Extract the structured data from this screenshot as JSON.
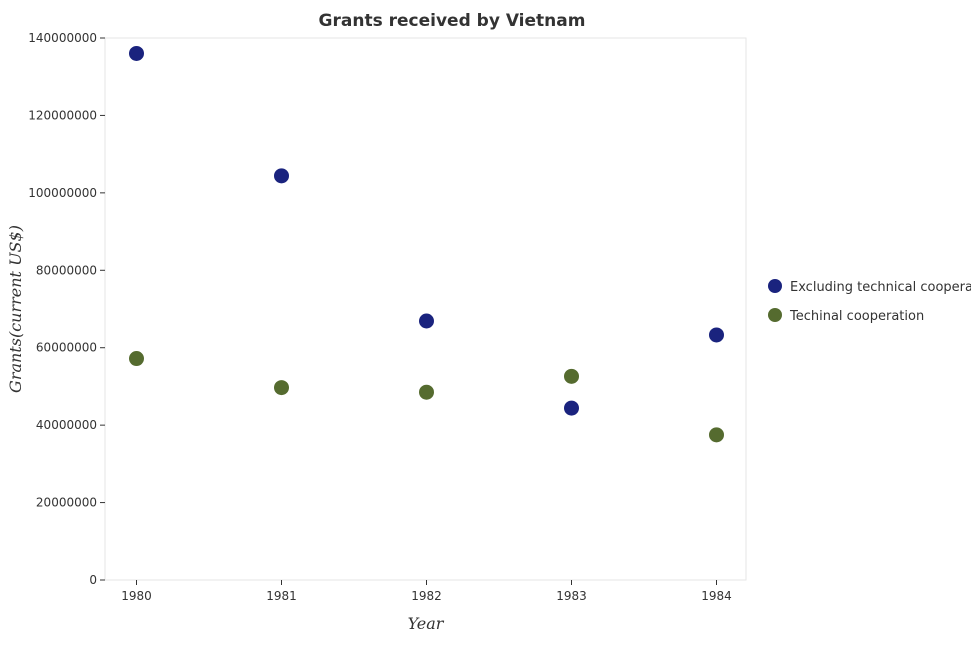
{
  "chart_data": {
    "type": "scatter",
    "title": "Grants received by Vietnam",
    "xlabel": "Year",
    "ylabel": "Grants(current US$)",
    "categories": [
      "1980",
      "1981",
      "1982",
      "1983",
      "1984"
    ],
    "yticks": [
      0,
      20000000,
      40000000,
      60000000,
      80000000,
      100000000,
      120000000,
      140000000
    ],
    "ytick_labels": [
      "0",
      "20000000",
      "40000000",
      "60000000",
      "80000000",
      "100000000",
      "120000000",
      "140000000"
    ],
    "ylim": [
      0,
      140000000
    ],
    "grid": false,
    "legend_position": "right",
    "series": [
      {
        "name": "Excluding technical cooperation",
        "color": "#1a237e",
        "values": [
          136000000,
          104400000,
          66900000,
          44400000,
          63300000
        ]
      },
      {
        "name": "Techinal cooperation",
        "color": "#556b2f",
        "values": [
          57200000,
          49700000,
          48500000,
          52600000,
          37500000
        ]
      }
    ]
  }
}
